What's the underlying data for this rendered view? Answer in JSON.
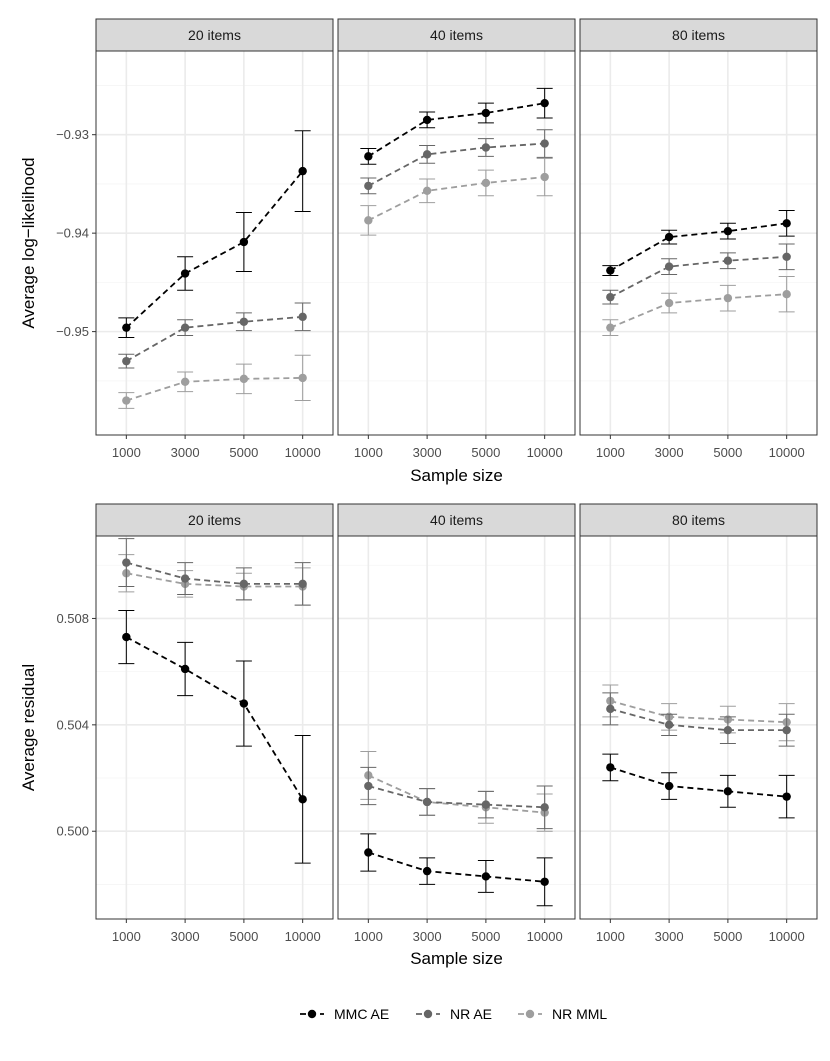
{
  "colors": {
    "MMC AE": "#000000",
    "NR AE": "#666666",
    "NR MML": "#9e9e9e",
    "panel_border": "#333333",
    "strip_fill": "#d9d9d9",
    "grid_major": "#ebebeb",
    "grid_minor": "#f5f5f5"
  },
  "legend": {
    "position": "bottom",
    "items": [
      "MMC AE",
      "NR AE",
      "NR MML"
    ]
  },
  "chart_data": [
    {
      "type": "line",
      "facet_by": "items",
      "facets": [
        "20 items",
        "40 items",
        "80 items"
      ],
      "xlabel": "Sample size",
      "ylabel": "Average log−likelihood",
      "categories": [
        "1000",
        "3000",
        "5000",
        "10000"
      ],
      "ylim": [
        -0.9605,
        -0.9215
      ],
      "y_ticks": [
        -0.93,
        -0.94,
        -0.95
      ],
      "y_tick_labels": [
        "−0.93",
        "−0.94",
        "−0.95"
      ],
      "y_minor_ticks": [
        -0.925,
        -0.935,
        -0.945,
        -0.955
      ],
      "grid": true,
      "error_bars": true,
      "series": [
        {
          "name": "MMC AE",
          "facets": [
            {
              "values": [
                -0.9496,
                -0.9441,
                -0.9409,
                -0.9337
              ],
              "err": [
                0.001,
                0.0017,
                0.003,
                0.0041
              ]
            },
            {
              "values": [
                -0.9322,
                -0.9285,
                -0.9278,
                -0.9268
              ],
              "err": [
                0.0008,
                0.0008,
                0.001,
                0.0015
              ]
            },
            {
              "values": [
                -0.9438,
                -0.9404,
                -0.9398,
                -0.939
              ],
              "err": [
                0.0005,
                0.0007,
                0.0008,
                0.0013
              ]
            }
          ]
        },
        {
          "name": "NR AE",
          "facets": [
            {
              "values": [
                -0.953,
                -0.9496,
                -0.949,
                -0.9485
              ],
              "err": [
                0.0007,
                0.0008,
                0.0009,
                0.0014
              ]
            },
            {
              "values": [
                -0.9352,
                -0.932,
                -0.9313,
                -0.9309
              ],
              "err": [
                0.0008,
                0.0009,
                0.0009,
                0.0014
              ]
            },
            {
              "values": [
                -0.9465,
                -0.9434,
                -0.9428,
                -0.9424
              ],
              "err": [
                0.0007,
                0.0008,
                0.0008,
                0.0013
              ]
            }
          ]
        },
        {
          "name": "NR MML",
          "facets": [
            {
              "values": [
                -0.957,
                -0.9551,
                -0.9548,
                -0.9547
              ],
              "err": [
                0.0008,
                0.001,
                0.0015,
                0.0023
              ]
            },
            {
              "values": [
                -0.9387,
                -0.9357,
                -0.9349,
                -0.9343
              ],
              "err": [
                0.0015,
                0.0012,
                0.0013,
                0.0019
              ]
            },
            {
              "values": [
                -0.9496,
                -0.9471,
                -0.9466,
                -0.9462
              ],
              "err": [
                0.0008,
                0.001,
                0.0013,
                0.0018
              ]
            }
          ]
        }
      ]
    },
    {
      "type": "line",
      "facet_by": "items",
      "facets": [
        "20 items",
        "40 items",
        "80 items"
      ],
      "xlabel": "Sample size",
      "ylabel": "Average residual",
      "categories": [
        "1000",
        "3000",
        "5000",
        "10000"
      ],
      "ylim": [
        0.4967,
        0.5111
      ],
      "y_ticks": [
        0.508,
        0.504,
        0.5
      ],
      "y_tick_labels": [
        "0.508",
        "0.504",
        "0.500"
      ],
      "y_minor_ticks": [
        0.51,
        0.506,
        0.502,
        0.498
      ],
      "grid": true,
      "error_bars": true,
      "series": [
        {
          "name": "MMC AE",
          "facets": [
            {
              "values": [
                0.5073,
                0.5061,
                0.5048,
                0.5012
              ],
              "err": [
                0.001,
                0.001,
                0.0016,
                0.0024
              ]
            },
            {
              "values": [
                0.4992,
                0.4985,
                0.4983,
                0.4981
              ],
              "err": [
                0.0007,
                0.0005,
                0.0006,
                0.0009
              ]
            },
            {
              "values": [
                0.5024,
                0.5017,
                0.5015,
                0.5013
              ],
              "err": [
                0.0005,
                0.0005,
                0.0006,
                0.0008
              ]
            }
          ]
        },
        {
          "name": "NR AE",
          "facets": [
            {
              "values": [
                0.5101,
                0.5095,
                0.5093,
                0.5093
              ],
              "err": [
                0.0009,
                0.0006,
                0.0006,
                0.0008
              ]
            },
            {
              "values": [
                0.5017,
                0.5011,
                0.501,
                0.5009
              ],
              "err": [
                0.0007,
                0.0005,
                0.0005,
                0.0008
              ]
            },
            {
              "values": [
                0.5046,
                0.504,
                0.5038,
                0.5038
              ],
              "err": [
                0.0006,
                0.0004,
                0.0005,
                0.0006
              ]
            }
          ]
        },
        {
          "name": "NR MML",
          "facets": [
            {
              "values": [
                0.5097,
                0.5093,
                0.5092,
                0.5092
              ],
              "err": [
                0.0007,
                0.0005,
                0.0005,
                0.0007
              ]
            },
            {
              "values": [
                0.5021,
                0.5011,
                0.5009,
                0.5007
              ],
              "err": [
                0.0009,
                0.0005,
                0.0006,
                0.0007
              ]
            },
            {
              "values": [
                0.5049,
                0.5043,
                0.5042,
                0.5041
              ],
              "err": [
                0.0006,
                0.0005,
                0.0005,
                0.0007
              ]
            }
          ]
        }
      ]
    }
  ]
}
